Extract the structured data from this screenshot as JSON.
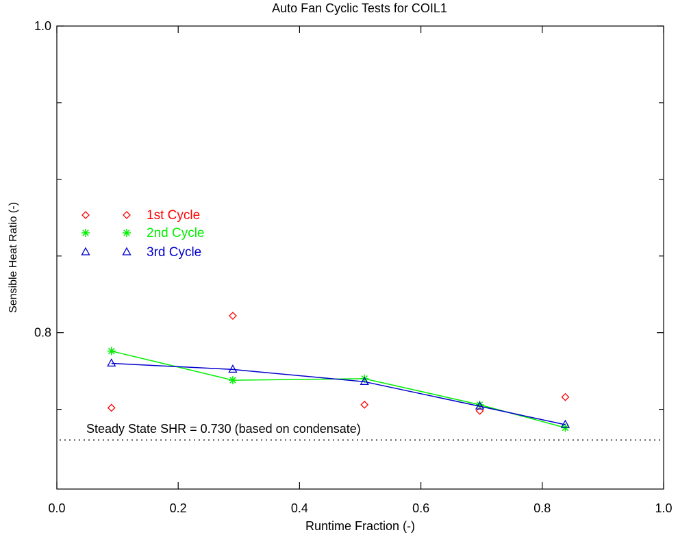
{
  "chart_data": {
    "type": "scatter",
    "title": "Auto Fan Cyclic Tests for COIL1",
    "xlabel": "Runtime Fraction (-)",
    "ylabel": "Sensible Heat Ratio (-)",
    "xlim": [
      0.0,
      1.0
    ],
    "ylim": [
      0.698,
      1.0
    ],
    "x_ticks": [
      0.0,
      0.2,
      0.4,
      0.6,
      0.8,
      1.0
    ],
    "x_tick_labels": [
      "0.0",
      "0.2",
      "0.4",
      "0.6",
      "0.8",
      "1.0"
    ],
    "y_ticks": [
      0.8,
      1.0
    ],
    "y_tick_labels": [
      "0.8",
      "1.0"
    ],
    "y_minor_ticks": [
      0.75,
      0.85,
      0.9,
      0.95
    ],
    "grid": false,
    "legend_position": "left",
    "series": [
      {
        "name": "1st Cycle",
        "marker": "diamond",
        "line": false,
        "color": "#ff0000",
        "x": [
          0.09,
          0.29,
          0.507,
          0.697,
          0.838
        ],
        "y": [
          0.751,
          0.811,
          0.753,
          0.749,
          0.758
        ]
      },
      {
        "name": "2nd Cycle",
        "marker": "asterisk",
        "line": true,
        "color": "#00ee00",
        "x": [
          0.09,
          0.29,
          0.507,
          0.697,
          0.838
        ],
        "y": [
          0.788,
          0.769,
          0.77,
          0.753,
          0.738
        ]
      },
      {
        "name": "3rd Cycle",
        "marker": "triangle",
        "line": true,
        "color": "#0000cc",
        "x": [
          0.09,
          0.29,
          0.507,
          0.697,
          0.838
        ],
        "y": [
          0.78,
          0.776,
          0.768,
          0.752,
          0.74
        ]
      }
    ],
    "reference_line": {
      "y": 0.73,
      "style": "dotted",
      "color": "#000000",
      "label": "Steady State SHR =  0.730  (based on condensate)"
    }
  }
}
